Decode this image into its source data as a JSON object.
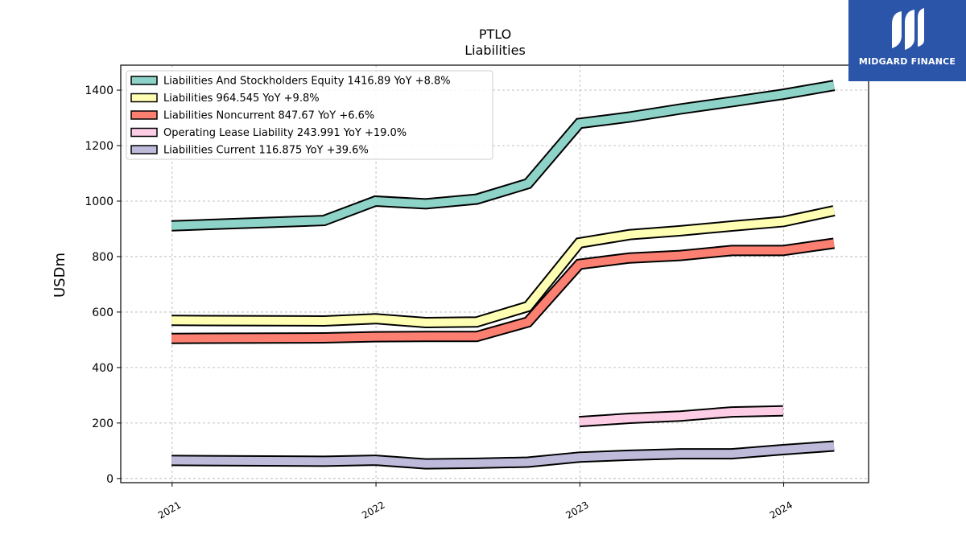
{
  "brand": {
    "name": "MIDGARD FINANCE",
    "bg_color": "#2b55a8"
  },
  "chart_data": {
    "type": "line",
    "title": "PTLO",
    "subtitle": "Liabilities",
    "ylabel": "USDm",
    "xlabel": "",
    "ylim": [
      -15,
      1490
    ],
    "xlim": [
      "2020-10-01",
      "2024-06-01"
    ],
    "yticks": [
      0,
      200,
      400,
      600,
      800,
      1000,
      1200,
      1400
    ],
    "xticks": [
      "2021",
      "2022",
      "2023",
      "2024"
    ],
    "xtick_dates": [
      "2021-01-01",
      "2022-01-01",
      "2023-01-01",
      "2024-01-01"
    ],
    "grid": true,
    "legend_position": "top-left",
    "series": [
      {
        "name": "Liabilities And Stockholders Equity",
        "legend": "Liabilities And Stockholders Equity  1416.89 YoY +8.8%",
        "color": "#8dd3c7",
        "points": [
          [
            "2020-12-31",
            911
          ],
          [
            "2021-09-30",
            930
          ],
          [
            "2021-12-31",
            1000
          ],
          [
            "2022-03-31",
            990
          ],
          [
            "2022-06-30",
            1007
          ],
          [
            "2022-09-30",
            1063
          ],
          [
            "2022-12-31",
            1280
          ],
          [
            "2023-03-31",
            1303
          ],
          [
            "2023-06-30",
            1332
          ],
          [
            "2023-09-30",
            1358
          ],
          [
            "2023-12-31",
            1385
          ],
          [
            "2024-03-31",
            1417
          ]
        ]
      },
      {
        "name": "Liabilities",
        "legend": "Liabilities  964.545 YoY +9.8%",
        "color": "#ffffb3",
        "points": [
          [
            "2020-12-31",
            570
          ],
          [
            "2021-09-30",
            568
          ],
          [
            "2021-12-31",
            576
          ],
          [
            "2022-03-31",
            562
          ],
          [
            "2022-06-30",
            564
          ],
          [
            "2022-09-30",
            620
          ],
          [
            "2022-12-31",
            849
          ],
          [
            "2023-03-31",
            879
          ],
          [
            "2023-06-30",
            893
          ],
          [
            "2023-09-30",
            910
          ],
          [
            "2023-12-31",
            926
          ],
          [
            "2024-03-31",
            965
          ]
        ]
      },
      {
        "name": "Liabilities Noncurrent",
        "legend": "Liabilities Noncurrent  847.67 YoY +6.6%",
        "color": "#fb8072",
        "points": [
          [
            "2020-12-31",
            505
          ],
          [
            "2021-09-30",
            507
          ],
          [
            "2021-12-31",
            511
          ],
          [
            "2022-03-31",
            512
          ],
          [
            "2022-06-30",
            512
          ],
          [
            "2022-09-30",
            564
          ],
          [
            "2022-12-31",
            772
          ],
          [
            "2023-03-31",
            795
          ],
          [
            "2023-06-30",
            804
          ],
          [
            "2023-09-30",
            822
          ],
          [
            "2023-12-31",
            822
          ],
          [
            "2024-03-31",
            848
          ]
        ]
      },
      {
        "name": "Operating Lease Liability",
        "legend": "Operating Lease Liability  243.991 YoY +19.0%",
        "color": "#fccde5",
        "points": [
          [
            "2022-12-31",
            205
          ],
          [
            "2023-03-31",
            217
          ],
          [
            "2023-06-30",
            225
          ],
          [
            "2023-09-30",
            240
          ],
          [
            "2023-12-31",
            244
          ]
        ]
      },
      {
        "name": "Liabilities Current",
        "legend": "Liabilities Current  116.875 YoY +39.6%",
        "color": "#bebada",
        "points": [
          [
            "2020-12-31",
            65
          ],
          [
            "2021-09-30",
            62
          ],
          [
            "2021-12-31",
            66
          ],
          [
            "2022-03-31",
            53
          ],
          [
            "2022-06-30",
            55
          ],
          [
            "2022-09-30",
            59
          ],
          [
            "2022-12-31",
            77
          ],
          [
            "2023-03-31",
            84
          ],
          [
            "2023-06-30",
            89
          ],
          [
            "2023-09-30",
            89
          ],
          [
            "2023-12-31",
            104
          ],
          [
            "2024-03-31",
            117
          ]
        ]
      }
    ]
  }
}
